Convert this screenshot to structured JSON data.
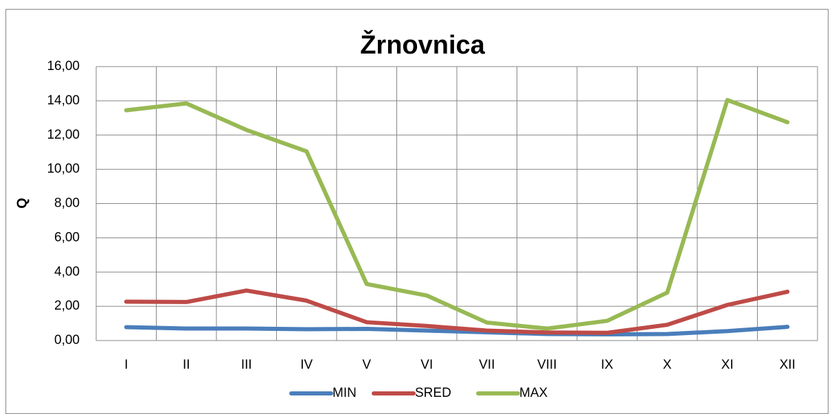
{
  "chart_data": {
    "type": "line",
    "title": "Žrnovnica",
    "y_label": "Q",
    "categories": [
      "I",
      "II",
      "III",
      "IV",
      "V",
      "VI",
      "VII",
      "VIII",
      "IX",
      "X",
      "XI",
      "XII"
    ],
    "series": [
      {
        "name": "MIN",
        "color": "#4a7ebb",
        "values": [
          0.78,
          0.7,
          0.7,
          0.66,
          0.68,
          0.58,
          0.48,
          0.38,
          0.36,
          0.38,
          0.55,
          0.8
        ]
      },
      {
        "name": "SRED",
        "color": "#be4b48",
        "values": [
          2.27,
          2.25,
          2.92,
          2.33,
          1.07,
          0.85,
          0.58,
          0.47,
          0.45,
          0.92,
          2.08,
          2.85
        ]
      },
      {
        "name": "MAX",
        "color": "#98b954",
        "values": [
          13.45,
          13.85,
          12.3,
          11.05,
          3.3,
          2.63,
          1.05,
          0.7,
          1.15,
          2.8,
          14.05,
          12.75
        ]
      }
    ],
    "ylim": [
      0,
      16
    ],
    "yticks": [
      {
        "value": 0,
        "label": "0,00"
      },
      {
        "value": 2,
        "label": "2,00"
      },
      {
        "value": 4,
        "label": "4,00"
      },
      {
        "value": 6,
        "label": "6,00"
      },
      {
        "value": 8,
        "label": "8,00"
      },
      {
        "value": 10,
        "label": "10,00"
      },
      {
        "value": 12,
        "label": "12,00"
      },
      {
        "value": 14,
        "label": "14,00"
      },
      {
        "value": 16,
        "label": "16,00"
      }
    ],
    "grid": true,
    "legend": "bottom"
  }
}
